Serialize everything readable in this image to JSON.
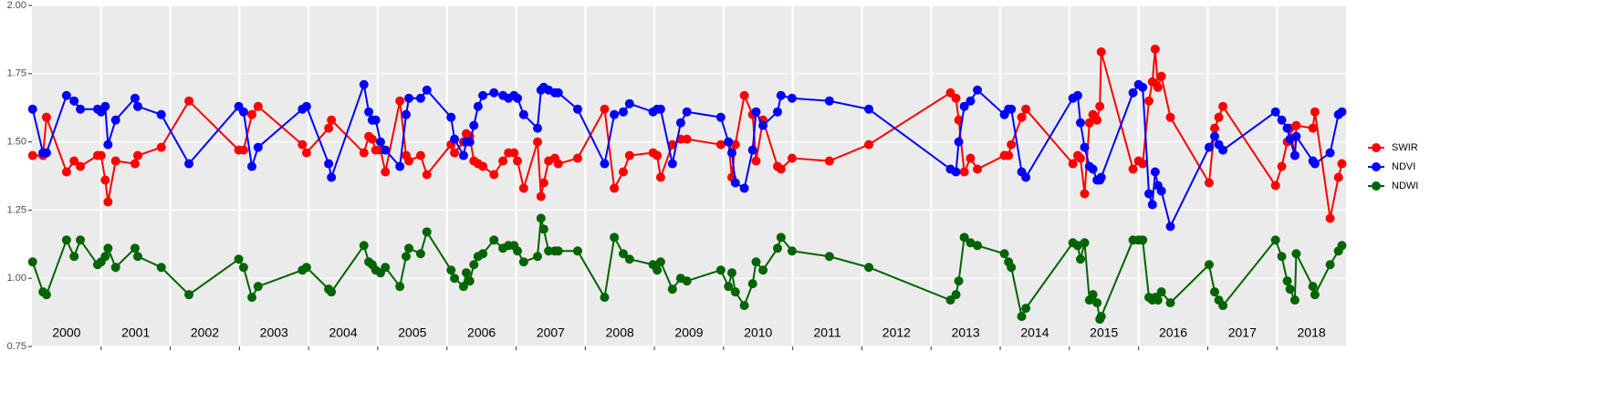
{
  "chart_data": {
    "type": "line",
    "x": [
      2000.01,
      2000.16,
      2000.21,
      2000.5,
      2000.61,
      2000.7,
      2000.95,
      2001.0,
      2001.06,
      2001.1,
      2001.21,
      2001.49,
      2001.53,
      2001.87,
      2002.27,
      2002.99,
      2003.06,
      2003.18,
      2003.27,
      2003.91,
      2003.97,
      2004.29,
      2004.33,
      2004.8,
      2004.87,
      2004.92,
      2004.97,
      2005.04,
      2005.11,
      2005.32,
      2005.41,
      2005.45,
      2005.62,
      2005.71,
      2006.06,
      2006.11,
      2006.24,
      2006.28,
      2006.33,
      2006.39,
      2006.45,
      2006.52,
      2006.68,
      2006.81,
      2006.89,
      2006.97,
      2007.02,
      2007.11,
      2007.31,
      2007.36,
      2007.4,
      2007.47,
      2007.56,
      2007.61,
      2007.89,
      2008.28,
      2008.42,
      2008.55,
      2008.64,
      2008.98,
      2009.04,
      2009.09,
      2009.26,
      2009.38,
      2009.47,
      2009.96,
      2010.07,
      2010.12,
      2010.17,
      2010.3,
      2010.42,
      2010.47,
      2010.57,
      2010.78,
      2010.83,
      2010.99,
      2011.53,
      2012.1,
      2013.28,
      2013.36,
      2013.4,
      2013.48,
      2013.57,
      2013.67,
      2014.06,
      2014.12,
      2014.16,
      2014.31,
      2014.37,
      2015.05,
      2015.12,
      2015.16,
      2015.22,
      2015.29,
      2015.34,
      2015.4,
      2015.44,
      2015.46,
      2015.92,
      2016.0,
      2016.06,
      2016.15,
      2016.2,
      2016.24,
      2016.28,
      2016.33,
      2016.46,
      2017.02,
      2017.1,
      2017.16,
      2017.22,
      2017.98,
      2018.07,
      2018.15,
      2018.19,
      2018.26,
      2018.28,
      2018.52,
      2018.55,
      2018.77,
      2018.89,
      2018.94
    ],
    "series": [
      {
        "name": "SWIR",
        "color": "#ff0000",
        "values": [
          1.45,
          1.45,
          1.59,
          1.39,
          1.43,
          1.41,
          1.45,
          1.45,
          1.36,
          1.28,
          1.43,
          1.42,
          1.45,
          1.48,
          1.65,
          1.47,
          1.47,
          1.6,
          1.63,
          1.49,
          1.46,
          1.55,
          1.58,
          1.46,
          1.52,
          1.51,
          1.47,
          1.47,
          1.39,
          1.65,
          1.45,
          1.43,
          1.45,
          1.38,
          1.49,
          1.46,
          1.5,
          1.53,
          1.52,
          1.43,
          1.42,
          1.41,
          1.38,
          1.43,
          1.46,
          1.46,
          1.43,
          1.33,
          1.5,
          1.3,
          1.35,
          1.43,
          1.44,
          1.42,
          1.44,
          1.62,
          1.33,
          1.39,
          1.45,
          1.46,
          1.45,
          1.37,
          1.49,
          1.51,
          1.51,
          1.49,
          1.5,
          1.37,
          1.49,
          1.67,
          1.6,
          1.43,
          1.58,
          1.41,
          1.4,
          1.44,
          1.43,
          1.49,
          1.68,
          1.66,
          1.58,
          1.39,
          1.44,
          1.4,
          1.45,
          1.45,
          1.49,
          1.59,
          1.62,
          1.42,
          1.45,
          1.44,
          1.31,
          1.57,
          1.6,
          1.58,
          1.63,
          1.83,
          1.4,
          1.43,
          1.42,
          1.65,
          1.72,
          1.84,
          1.7,
          1.74,
          1.59,
          1.35,
          1.55,
          1.59,
          1.63,
          1.34,
          1.41,
          1.5,
          1.55,
          1.45,
          1.56,
          1.55,
          1.61,
          1.22,
          1.37,
          1.42
        ]
      },
      {
        "name": "NDVI",
        "color": "#0000ff",
        "values": [
          1.62,
          1.46,
          1.46,
          1.67,
          1.65,
          1.62,
          1.62,
          1.61,
          1.63,
          1.49,
          1.58,
          1.66,
          1.63,
          1.6,
          1.42,
          1.63,
          1.61,
          1.41,
          1.48,
          1.62,
          1.63,
          1.42,
          1.37,
          1.71,
          1.61,
          1.58,
          1.58,
          1.5,
          1.47,
          1.41,
          1.6,
          1.66,
          1.66,
          1.69,
          1.59,
          1.51,
          1.45,
          1.5,
          1.5,
          1.56,
          1.63,
          1.67,
          1.68,
          1.67,
          1.66,
          1.67,
          1.66,
          1.6,
          1.55,
          1.69,
          1.7,
          1.69,
          1.68,
          1.68,
          1.62,
          1.42,
          1.6,
          1.61,
          1.64,
          1.61,
          1.62,
          1.62,
          1.42,
          1.57,
          1.61,
          1.59,
          1.5,
          1.46,
          1.35,
          1.33,
          1.47,
          1.61,
          1.56,
          1.61,
          1.67,
          1.66,
          1.65,
          1.62,
          1.4,
          1.39,
          1.5,
          1.63,
          1.65,
          1.69,
          1.6,
          1.62,
          1.62,
          1.39,
          1.37,
          1.66,
          1.67,
          1.57,
          1.48,
          1.41,
          1.4,
          1.36,
          1.36,
          1.37,
          1.68,
          1.71,
          1.7,
          1.31,
          1.27,
          1.39,
          1.34,
          1.32,
          1.19,
          1.48,
          1.52,
          1.49,
          1.47,
          1.61,
          1.58,
          1.55,
          1.51,
          1.45,
          1.52,
          1.43,
          1.42,
          1.46,
          1.6,
          1.61
        ]
      },
      {
        "name": "NDWI",
        "color": "#006400",
        "values": [
          1.06,
          0.95,
          0.94,
          1.14,
          1.08,
          1.14,
          1.05,
          1.06,
          1.08,
          1.11,
          1.04,
          1.11,
          1.08,
          1.04,
          0.94,
          1.07,
          1.04,
          0.93,
          0.97,
          1.03,
          1.04,
          0.96,
          0.95,
          1.12,
          1.06,
          1.05,
          1.03,
          1.02,
          1.04,
          0.97,
          1.08,
          1.11,
          1.09,
          1.17,
          1.03,
          1.0,
          0.97,
          1.02,
          0.99,
          1.05,
          1.08,
          1.09,
          1.14,
          1.11,
          1.12,
          1.12,
          1.1,
          1.06,
          1.08,
          1.22,
          1.18,
          1.1,
          1.1,
          1.1,
          1.1,
          0.93,
          1.15,
          1.09,
          1.07,
          1.05,
          1.03,
          1.06,
          0.96,
          1.0,
          0.99,
          1.03,
          0.97,
          1.02,
          0.95,
          0.9,
          0.98,
          1.06,
          1.03,
          1.11,
          1.15,
          1.1,
          1.08,
          1.04,
          0.92,
          0.94,
          0.99,
          1.15,
          1.13,
          1.12,
          1.09,
          1.06,
          1.04,
          0.86,
          0.89,
          1.13,
          1.12,
          1.07,
          1.13,
          0.92,
          0.94,
          0.91,
          0.85,
          0.86,
          1.14,
          1.14,
          1.14,
          0.93,
          0.92,
          0.93,
          0.92,
          0.95,
          0.91,
          1.05,
          0.95,
          0.92,
          0.9,
          1.14,
          1.08,
          0.99,
          0.96,
          0.92,
          1.09,
          0.97,
          0.94,
          1.05,
          1.1,
          1.12
        ]
      }
    ],
    "xlim": [
      2000,
      2019
    ],
    "xticks": [
      {
        "value": 2000.5,
        "label": "2000"
      },
      {
        "value": 2001.5,
        "label": "2001"
      },
      {
        "value": 2002.5,
        "label": "2002"
      },
      {
        "value": 2003.5,
        "label": "2003"
      },
      {
        "value": 2004.5,
        "label": "2004"
      },
      {
        "value": 2005.5,
        "label": "2005"
      },
      {
        "value": 2006.5,
        "label": "2006"
      },
      {
        "value": 2007.5,
        "label": "2007"
      },
      {
        "value": 2008.5,
        "label": "2008"
      },
      {
        "value": 2009.5,
        "label": "2009"
      },
      {
        "value": 2010.5,
        "label": "2010"
      },
      {
        "value": 2011.5,
        "label": "2011"
      },
      {
        "value": 2012.5,
        "label": "2012"
      },
      {
        "value": 2013.5,
        "label": "2013"
      },
      {
        "value": 2014.5,
        "label": "2014"
      },
      {
        "value": 2015.5,
        "label": "2015"
      },
      {
        "value": 2016.5,
        "label": "2016"
      },
      {
        "value": 2017.5,
        "label": "2017"
      },
      {
        "value": 2018.5,
        "label": "2018"
      }
    ],
    "ylim": [
      0.75,
      2.0
    ],
    "yticks": [
      0.75,
      {
        "value": 1.0,
        "label": "1.00"
      },
      1.25,
      {
        "value": 1.5,
        "label": "1.50"
      },
      1.75,
      {
        "value": 2.0,
        "label": "2.00"
      }
    ],
    "grid": true,
    "legend": "right"
  }
}
